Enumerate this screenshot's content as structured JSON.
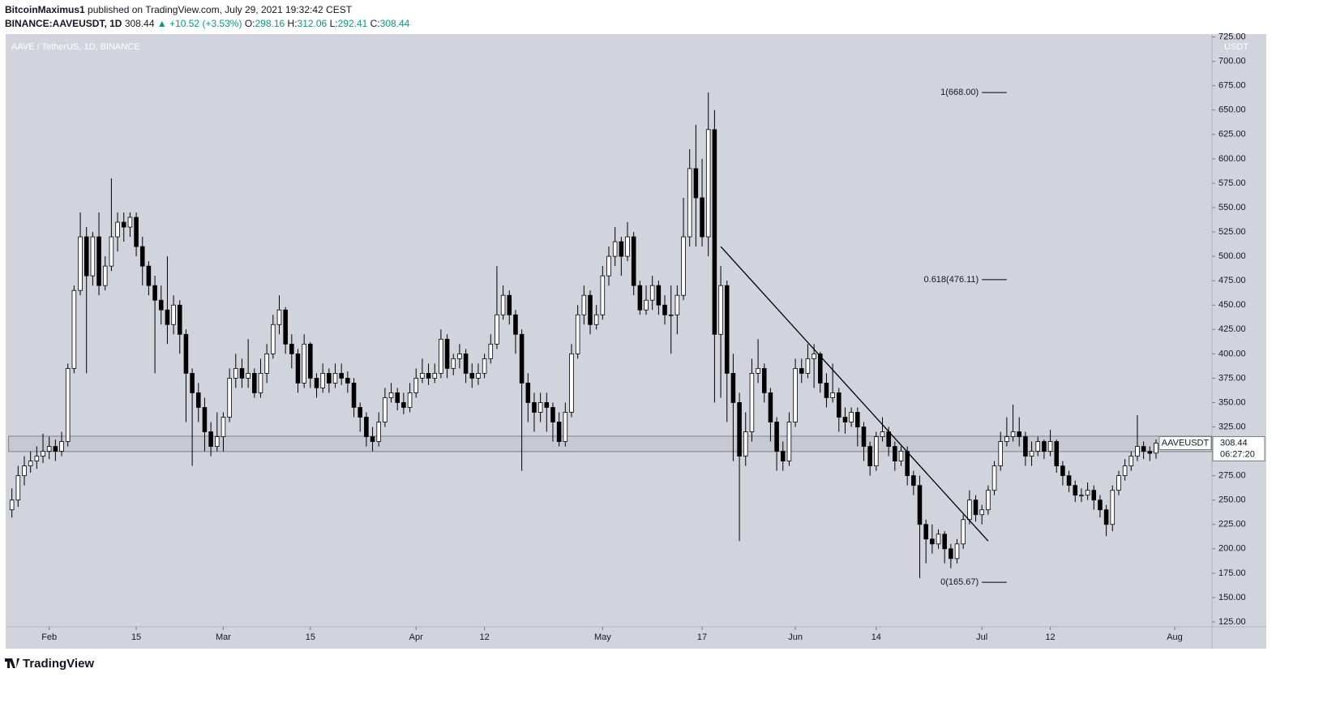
{
  "header": {
    "author": "BitcoinMaximus1",
    "published": "published on TradingView.com, July 29, 2021 19:32:42 CEST",
    "symbol": "BINANCE:AAVEUSDT, 1D",
    "last": "308.44",
    "change": "▲ +10.52 (+3.53%)",
    "ohlc": [
      {
        "key": "O:",
        "value": "298.16"
      },
      {
        "key": "H:",
        "value": "312.06"
      },
      {
        "key": "L:",
        "value": "292.41"
      },
      {
        "key": "C:",
        "value": "308.44"
      }
    ]
  },
  "footer": {
    "logo": "TradingView"
  },
  "chart_data": {
    "type": "candlestick",
    "title": "AAVE / TetherUS, 1D, BINANCE",
    "y_unit": "USDT",
    "background": "#d1d4dc",
    "up_color": "#ffffff",
    "down_color": "#000000",
    "grid": false,
    "x": [
      "2021-01-26",
      "2021-01-27",
      "2021-01-28",
      "2021-01-29",
      "2021-01-30",
      "2021-01-31",
      "2021-02-01",
      "2021-02-02",
      "2021-02-03",
      "2021-02-04",
      "2021-02-05",
      "2021-02-06",
      "2021-02-07",
      "2021-02-08",
      "2021-02-09",
      "2021-02-10",
      "2021-02-11",
      "2021-02-12",
      "2021-02-13",
      "2021-02-14",
      "2021-02-15",
      "2021-02-16",
      "2021-02-17",
      "2021-02-18",
      "2021-02-19",
      "2021-02-20",
      "2021-02-21",
      "2021-02-22",
      "2021-02-23",
      "2021-02-24",
      "2021-02-25",
      "2021-02-26",
      "2021-02-27",
      "2021-02-28",
      "2021-03-01",
      "2021-03-02",
      "2021-03-03",
      "2021-03-04",
      "2021-03-05",
      "2021-03-06",
      "2021-03-07",
      "2021-03-08",
      "2021-03-09",
      "2021-03-10",
      "2021-03-11",
      "2021-03-12",
      "2021-03-13",
      "2021-03-14",
      "2021-03-15",
      "2021-03-16",
      "2021-03-17",
      "2021-03-18",
      "2021-03-19",
      "2021-03-20",
      "2021-03-21",
      "2021-03-22",
      "2021-03-23",
      "2021-03-24",
      "2021-03-25",
      "2021-03-26",
      "2021-03-27",
      "2021-03-28",
      "2021-03-29",
      "2021-03-30",
      "2021-03-31",
      "2021-04-01",
      "2021-04-02",
      "2021-04-03",
      "2021-04-04",
      "2021-04-05",
      "2021-04-06",
      "2021-04-07",
      "2021-04-08",
      "2021-04-09",
      "2021-04-10",
      "2021-04-11",
      "2021-04-12",
      "2021-04-13",
      "2021-04-14",
      "2021-04-15",
      "2021-04-16",
      "2021-04-17",
      "2021-04-18",
      "2021-04-19",
      "2021-04-20",
      "2021-04-21",
      "2021-04-22",
      "2021-04-23",
      "2021-04-24",
      "2021-04-25",
      "2021-04-26",
      "2021-04-27",
      "2021-04-28",
      "2021-04-29",
      "2021-04-30",
      "2021-05-01",
      "2021-05-02",
      "2021-05-03",
      "2021-05-04",
      "2021-05-05",
      "2021-05-06",
      "2021-05-07",
      "2021-05-08",
      "2021-05-09",
      "2021-05-10",
      "2021-05-11",
      "2021-05-12",
      "2021-05-13",
      "2021-05-14",
      "2021-05-15",
      "2021-05-16",
      "2021-05-17",
      "2021-05-18",
      "2021-05-19",
      "2021-05-20",
      "2021-05-21",
      "2021-05-22",
      "2021-05-23",
      "2021-05-24",
      "2021-05-25",
      "2021-05-26",
      "2021-05-27",
      "2021-05-28",
      "2021-05-29",
      "2021-05-30",
      "2021-05-31",
      "2021-06-01",
      "2021-06-02",
      "2021-06-03",
      "2021-06-04",
      "2021-06-05",
      "2021-06-06",
      "2021-06-07",
      "2021-06-08",
      "2021-06-09",
      "2021-06-10",
      "2021-06-11",
      "2021-06-12",
      "2021-06-13",
      "2021-06-14",
      "2021-06-15",
      "2021-06-16",
      "2021-06-17",
      "2021-06-18",
      "2021-06-19",
      "2021-06-20",
      "2021-06-21",
      "2021-06-22",
      "2021-06-23",
      "2021-06-24",
      "2021-06-25",
      "2021-06-26",
      "2021-06-27",
      "2021-06-28",
      "2021-06-29",
      "2021-06-30",
      "2021-07-01",
      "2021-07-02",
      "2021-07-03",
      "2021-07-04",
      "2021-07-05",
      "2021-07-06",
      "2021-07-07",
      "2021-07-08",
      "2021-07-09",
      "2021-07-10",
      "2021-07-11",
      "2021-07-12",
      "2021-07-13",
      "2021-07-14",
      "2021-07-15",
      "2021-07-16",
      "2021-07-17",
      "2021-07-18",
      "2021-07-19",
      "2021-07-20",
      "2021-07-21",
      "2021-07-22",
      "2021-07-23",
      "2021-07-24",
      "2021-07-25",
      "2021-07-26",
      "2021-07-27",
      "2021-07-28",
      "2021-07-29"
    ],
    "open": [
      240,
      250,
      275,
      285,
      290,
      295,
      300,
      305,
      300,
      310,
      385,
      465,
      520,
      480,
      520,
      470,
      490,
      520,
      535,
      530,
      540,
      510,
      490,
      470,
      455,
      445,
      430,
      450,
      420,
      380,
      360,
      345,
      320,
      305,
      315,
      335,
      375,
      385,
      375,
      380,
      360,
      380,
      400,
      430,
      445,
      410,
      400,
      370,
      410,
      375,
      365,
      380,
      370,
      380,
      375,
      370,
      345,
      335,
      315,
      310,
      330,
      355,
      360,
      350,
      345,
      360,
      375,
      380,
      375,
      380,
      415,
      385,
      395,
      400,
      380,
      375,
      380,
      395,
      410,
      440,
      460,
      440,
      420,
      370,
      350,
      340,
      350,
      345,
      330,
      310,
      340,
      400,
      440,
      460,
      430,
      440,
      480,
      500,
      515,
      500,
      520,
      470,
      445,
      455,
      470,
      450,
      440,
      440,
      460,
      520,
      590,
      560,
      520,
      630,
      420,
      470,
      380,
      350,
      295,
      320,
      380,
      385,
      360,
      330,
      300,
      290,
      330,
      385,
      380,
      395,
      400,
      370,
      355,
      360,
      335,
      330,
      340,
      325,
      305,
      285,
      315,
      320,
      305,
      290,
      300,
      275,
      265,
      225,
      210,
      205,
      215,
      200,
      190,
      205,
      230,
      250,
      235,
      240,
      260,
      285,
      310,
      315,
      320,
      315,
      295,
      300,
      310,
      300,
      310,
      285,
      275,
      265,
      255,
      255,
      260,
      250,
      240,
      225,
      260,
      275,
      285,
      295,
      305,
      300,
      298.16
    ],
    "high": [
      262,
      285,
      295,
      300,
      305,
      318,
      315,
      312,
      320,
      390,
      470,
      545,
      530,
      525,
      545,
      500,
      580,
      545,
      545,
      545,
      545,
      520,
      495,
      480,
      470,
      500,
      460,
      455,
      425,
      385,
      370,
      355,
      330,
      340,
      340,
      385,
      400,
      395,
      415,
      385,
      395,
      410,
      440,
      460,
      448,
      420,
      405,
      420,
      412,
      380,
      390,
      385,
      390,
      390,
      382,
      375,
      350,
      340,
      325,
      340,
      365,
      370,
      365,
      360,
      370,
      385,
      395,
      390,
      390,
      425,
      420,
      400,
      410,
      405,
      390,
      390,
      400,
      420,
      490,
      470,
      465,
      445,
      425,
      380,
      360,
      360,
      360,
      350,
      340,
      350,
      410,
      450,
      470,
      465,
      450,
      490,
      510,
      530,
      520,
      535,
      525,
      475,
      470,
      480,
      475,
      460,
      470,
      470,
      560,
      610,
      635,
      600,
      668,
      650,
      490,
      475,
      400,
      360,
      340,
      395,
      415,
      390,
      365,
      335,
      310,
      340,
      395,
      395,
      410,
      410,
      402,
      380,
      390,
      365,
      345,
      345,
      345,
      330,
      310,
      320,
      335,
      325,
      310,
      305,
      305,
      280,
      275,
      230,
      225,
      220,
      218,
      205,
      210,
      235,
      260,
      255,
      245,
      265,
      290,
      320,
      335,
      348,
      335,
      320,
      310,
      315,
      312,
      322,
      312,
      290,
      280,
      270,
      262,
      268,
      265,
      255,
      245,
      265,
      280,
      292,
      300,
      337,
      310,
      305,
      312.06
    ],
    "low": [
      232,
      243,
      265,
      278,
      282,
      288,
      292,
      290,
      295,
      305,
      380,
      460,
      380,
      470,
      460,
      465,
      485,
      505,
      515,
      520,
      500,
      470,
      460,
      380,
      430,
      410,
      420,
      400,
      330,
      285,
      330,
      300,
      295,
      300,
      300,
      330,
      365,
      365,
      365,
      355,
      355,
      370,
      395,
      420,
      400,
      385,
      360,
      365,
      365,
      355,
      360,
      360,
      365,
      368,
      360,
      335,
      320,
      305,
      300,
      305,
      325,
      350,
      342,
      338,
      340,
      355,
      370,
      368,
      370,
      375,
      375,
      378,
      385,
      370,
      365,
      368,
      375,
      390,
      405,
      435,
      430,
      400,
      280,
      330,
      320,
      330,
      320,
      310,
      305,
      305,
      335,
      395,
      430,
      420,
      425,
      435,
      470,
      490,
      480,
      495,
      460,
      440,
      440,
      445,
      440,
      430,
      400,
      420,
      455,
      510,
      510,
      510,
      500,
      350,
      355,
      330,
      290,
      208,
      285,
      310,
      370,
      350,
      310,
      280,
      280,
      285,
      325,
      370,
      375,
      365,
      360,
      345,
      350,
      320,
      318,
      325,
      305,
      290,
      275,
      280,
      310,
      295,
      280,
      285,
      265,
      255,
      170,
      185,
      195,
      200,
      185,
      180,
      185,
      200,
      225,
      228,
      225,
      235,
      255,
      280,
      305,
      310,
      305,
      285,
      285,
      295,
      292,
      295,
      278,
      265,
      258,
      248,
      248,
      250,
      240,
      232,
      213,
      218,
      255,
      270,
      280,
      290,
      292,
      290,
      292.41
    ],
    "close": [
      250,
      275,
      285,
      290,
      295,
      300,
      305,
      300,
      310,
      385,
      465,
      520,
      480,
      520,
      470,
      490,
      520,
      535,
      530,
      540,
      510,
      490,
      470,
      455,
      445,
      430,
      450,
      420,
      380,
      360,
      345,
      320,
      305,
      315,
      335,
      375,
      385,
      375,
      380,
      360,
      380,
      400,
      430,
      445,
      410,
      400,
      370,
      410,
      375,
      365,
      380,
      370,
      380,
      375,
      370,
      345,
      335,
      315,
      310,
      330,
      355,
      360,
      350,
      345,
      360,
      375,
      380,
      375,
      380,
      415,
      385,
      395,
      400,
      380,
      375,
      380,
      395,
      410,
      440,
      460,
      440,
      420,
      370,
      350,
      340,
      350,
      345,
      330,
      310,
      340,
      400,
      440,
      460,
      430,
      440,
      480,
      500,
      515,
      500,
      520,
      470,
      445,
      455,
      470,
      450,
      440,
      440,
      460,
      520,
      590,
      560,
      520,
      630,
      420,
      470,
      380,
      350,
      295,
      320,
      380,
      385,
      360,
      330,
      300,
      290,
      330,
      385,
      380,
      395,
      400,
      370,
      355,
      360,
      335,
      330,
      340,
      325,
      305,
      285,
      315,
      320,
      305,
      290,
      300,
      275,
      265,
      225,
      210,
      205,
      215,
      200,
      190,
      205,
      230,
      250,
      235,
      240,
      260,
      285,
      310,
      315,
      320,
      315,
      295,
      300,
      310,
      300,
      310,
      285,
      275,
      265,
      255,
      255,
      260,
      250,
      240,
      225,
      260,
      275,
      285,
      295,
      305,
      300,
      297.92,
      308.44
    ],
    "xlim": [
      "2021-01-25",
      "2021-08-07"
    ],
    "xticks": [
      {
        "value": "2021-02-01",
        "label": "Feb"
      },
      {
        "value": "2021-02-15",
        "label": "15"
      },
      {
        "value": "2021-03-01",
        "label": "Mar"
      },
      {
        "value": "2021-03-15",
        "label": "15"
      },
      {
        "value": "2021-04-01",
        "label": "Apr"
      },
      {
        "value": "2021-04-12",
        "label": "12"
      },
      {
        "value": "2021-05-01",
        "label": "May"
      },
      {
        "value": "2021-05-17",
        "label": "17"
      },
      {
        "value": "2021-06-01",
        "label": "Jun"
      },
      {
        "value": "2021-06-14",
        "label": "14"
      },
      {
        "value": "2021-07-01",
        "label": "Jul"
      },
      {
        "value": "2021-07-12",
        "label": "12"
      },
      {
        "value": "2021-08-01",
        "label": "Aug"
      }
    ],
    "ylim": [
      120,
      728
    ],
    "yticks": [
      {
        "value": 125,
        "label": "125.00"
      },
      {
        "value": 150,
        "label": "150.00"
      },
      {
        "value": 175,
        "label": "175.00"
      },
      {
        "value": 200,
        "label": "200.00"
      },
      {
        "value": 225,
        "label": "225.00"
      },
      {
        "value": 250,
        "label": "250.00"
      },
      {
        "value": 275,
        "label": "275.00"
      },
      {
        "value": 300,
        "label": "300.00"
      },
      {
        "value": 325,
        "label": "325.00"
      },
      {
        "value": 350,
        "label": "350.00"
      },
      {
        "value": 375,
        "label": "375.00"
      },
      {
        "value": 400,
        "label": "400.00"
      },
      {
        "value": 425,
        "label": "425.00"
      },
      {
        "value": 450,
        "label": "450.00"
      },
      {
        "value": 475,
        "label": "475.00"
      },
      {
        "value": 500,
        "label": "500.00"
      },
      {
        "value": 525,
        "label": "525.00"
      },
      {
        "value": 550,
        "label": "550.00"
      },
      {
        "value": 575,
        "label": "575.00"
      },
      {
        "value": 600,
        "label": "600.00"
      },
      {
        "value": 625,
        "label": "625.00"
      },
      {
        "value": 650,
        "label": "650.00"
      },
      {
        "value": 675,
        "label": "675.00"
      },
      {
        "value": 700,
        "label": "700.00"
      },
      {
        "value": 725,
        "label": "725.00"
      }
    ],
    "band": [
      299.7,
      315.5
    ],
    "trendline": {
      "x": [
        "2021-05-20",
        "2021-07-02"
      ],
      "values": [
        510,
        208
      ]
    },
    "fib_levels": {
      "x": [
        "2021-07-01",
        "2021-07-05"
      ],
      "levels": [
        {
          "value": 668,
          "label": "1(668.00)"
        },
        {
          "value": 476.11,
          "label": "0.618(476.11)"
        },
        {
          "value": 165.67,
          "label": "0(165.67)"
        }
      ]
    },
    "price_tag": {
      "symbol": "AAVEUSDT",
      "value": 308.44,
      "countdown": "06:27:20"
    }
  }
}
